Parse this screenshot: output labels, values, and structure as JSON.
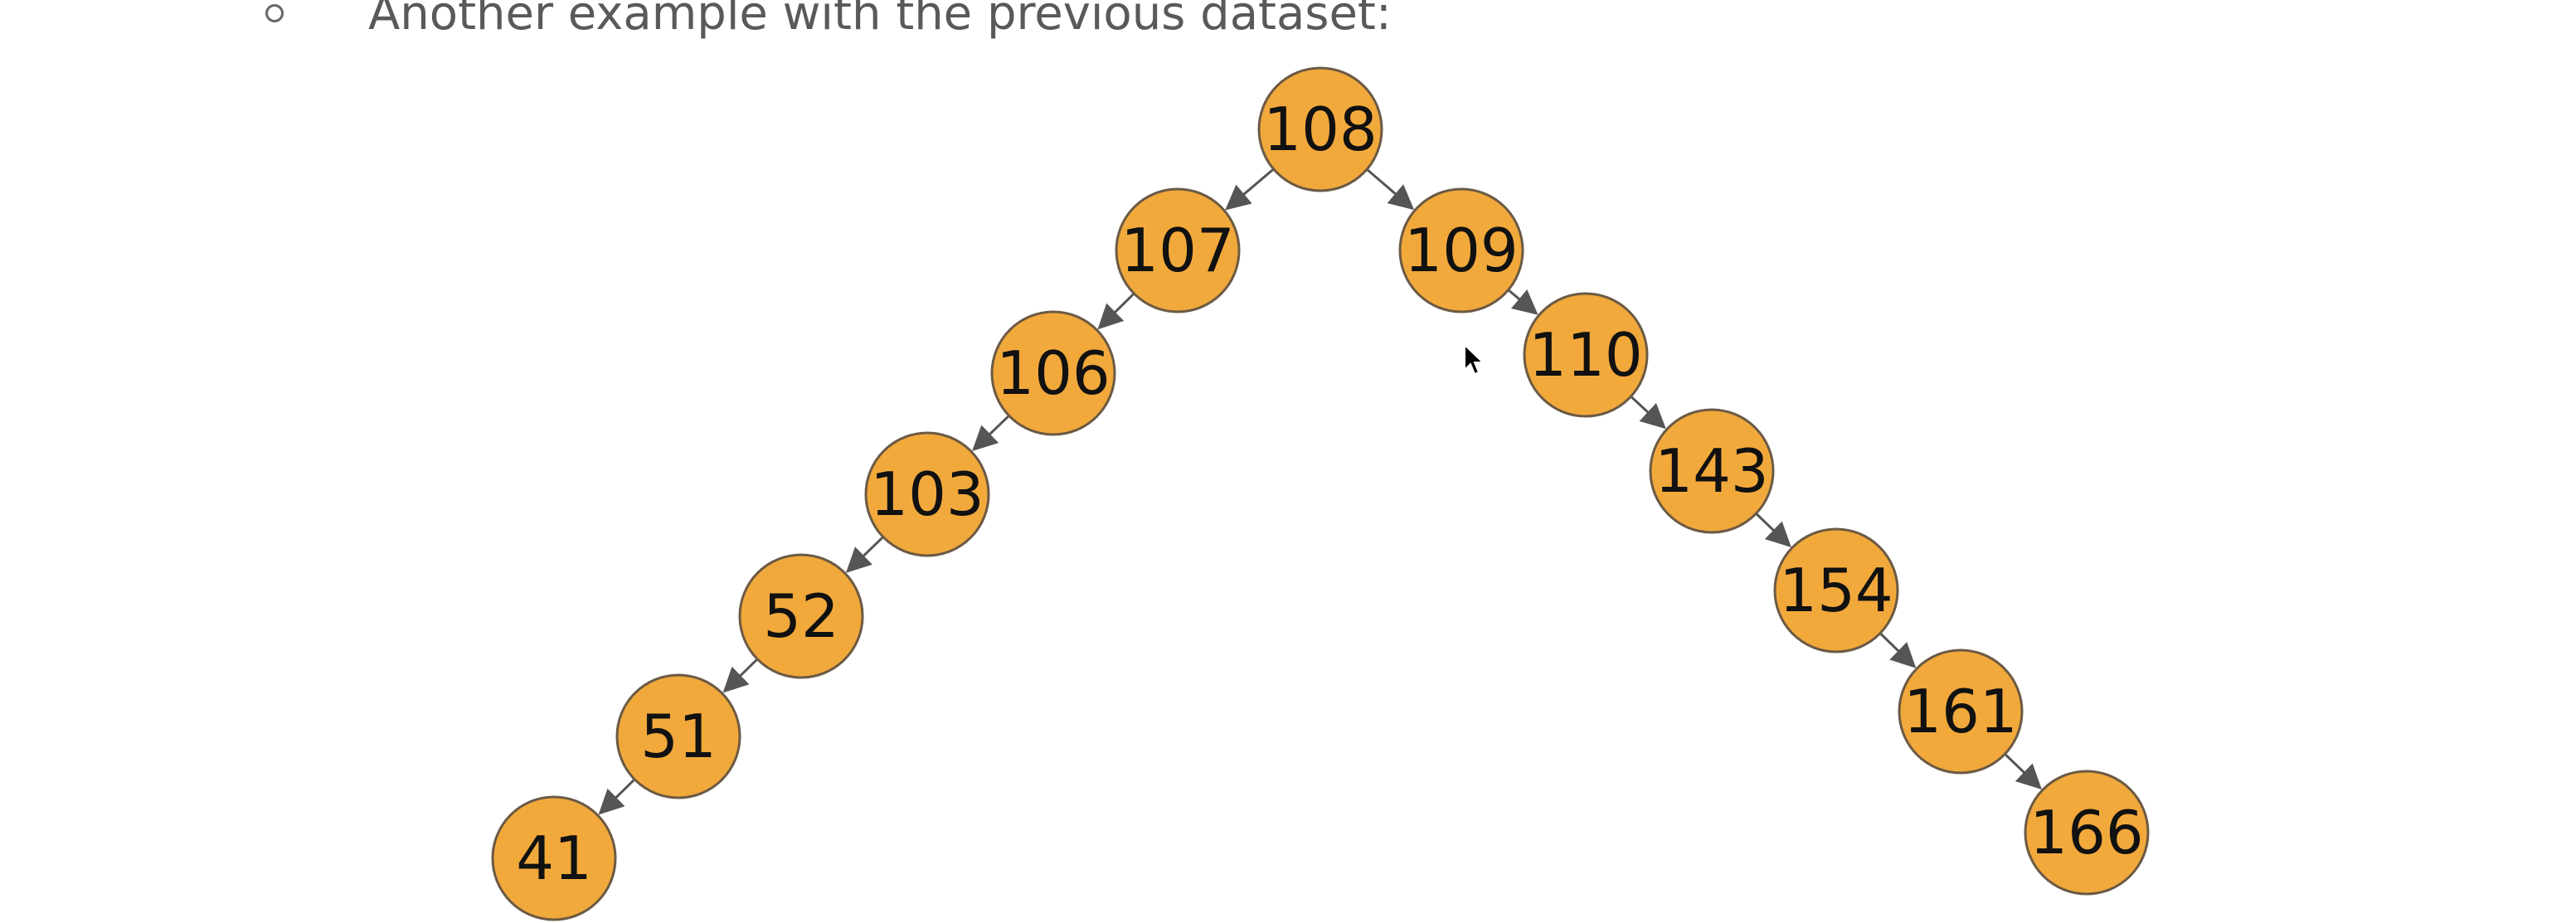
{
  "slide": {
    "bullet_text": "Another example with the previous dataset:"
  },
  "tree": {
    "root": "108",
    "nodes": [
      "108",
      "107",
      "106",
      "103",
      "52",
      "51",
      "41",
      "109",
      "110",
      "143",
      "154",
      "161",
      "166"
    ],
    "edges": [
      [
        "108",
        "107"
      ],
      [
        "107",
        "106"
      ],
      [
        "106",
        "103"
      ],
      [
        "103",
        "52"
      ],
      [
        "52",
        "51"
      ],
      [
        "51",
        "41"
      ],
      [
        "108",
        "109"
      ],
      [
        "109",
        "110"
      ],
      [
        "110",
        "143"
      ],
      [
        "143",
        "154"
      ],
      [
        "154",
        "161"
      ],
      [
        "161",
        "166"
      ]
    ],
    "colors": {
      "node_fill": "#f2a93b",
      "node_stroke": "#6b5a44",
      "edge": "#555555",
      "label": "#111111"
    }
  }
}
